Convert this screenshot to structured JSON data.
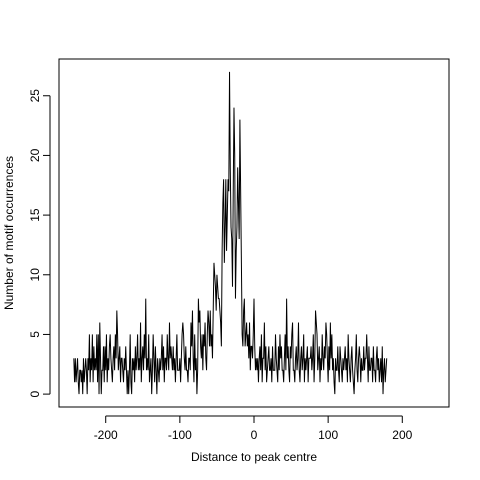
{
  "chart_data": {
    "type": "line",
    "title": "",
    "xlabel": "Distance to peak centre",
    "ylabel": "Number of motif occurrences",
    "xlim": [
      -250,
      250
    ],
    "ylim": [
      0,
      28
    ],
    "x_ticks": [
      -200,
      -100,
      0,
      100,
      200
    ],
    "x_tick_labels": [
      "-200",
      "-100",
      "0",
      "100",
      "200"
    ],
    "y_ticks": [
      0,
      5,
      10,
      15,
      20,
      25
    ],
    "y_tick_labels": [
      "0",
      "5",
      "10",
      "15",
      "20",
      "25"
    ],
    "grid": false,
    "legend": "none",
    "line_color": "#000000",
    "x_start": -243,
    "x_step": 1,
    "series": [
      {
        "values": [
          3,
          1,
          3,
          1,
          2,
          3,
          1,
          0,
          2,
          2,
          1,
          2,
          0,
          3,
          1,
          2,
          3,
          2,
          0,
          3,
          2,
          5,
          1,
          3,
          2,
          5,
          1,
          4,
          2,
          3,
          2,
          5,
          1,
          5,
          0,
          6,
          3,
          0,
          2,
          2,
          4,
          1,
          4,
          2,
          5,
          1,
          3,
          2,
          4,
          5,
          3,
          2,
          1,
          3,
          4,
          2,
          5,
          3,
          7,
          5,
          2,
          3,
          4,
          1,
          3,
          3,
          2,
          1,
          3,
          2,
          4,
          2,
          0,
          2,
          0,
          2,
          5,
          1,
          0,
          3,
          2,
          3,
          1,
          4,
          2,
          3,
          5,
          2,
          3,
          2,
          6,
          1,
          3,
          4,
          2,
          5,
          3,
          8,
          2,
          3,
          2,
          5,
          1,
          2,
          3,
          0,
          2,
          5,
          3,
          1,
          4,
          2,
          0,
          3,
          2,
          1,
          3,
          2,
          3,
          5,
          2,
          4,
          1,
          3,
          3,
          2,
          5,
          3,
          2,
          6,
          3,
          4,
          3,
          2,
          4,
          2,
          3,
          1,
          3,
          5,
          2,
          2,
          2,
          3,
          1,
          3,
          5,
          6,
          5,
          3,
          2,
          4,
          2,
          2,
          1,
          3,
          3,
          2,
          6,
          4,
          7,
          3,
          1,
          5,
          2,
          3,
          0,
          2,
          8,
          6,
          7,
          4,
          3,
          5,
          2,
          5,
          4,
          6,
          3,
          2,
          5,
          7,
          6,
          4,
          7,
          4,
          5,
          3,
          7,
          11,
          10,
          9,
          7,
          10,
          9,
          8,
          8,
          7,
          6,
          4,
          12,
          16,
          18,
          11,
          14,
          18,
          12,
          15,
          18,
          17,
          27,
          19,
          14,
          13,
          9,
          17,
          24,
          20,
          8,
          12,
          14,
          19,
          16,
          13,
          23,
          17,
          11,
          5,
          4,
          7,
          8,
          4,
          5,
          6,
          4,
          5,
          3,
          6,
          2,
          4,
          4,
          3,
          5,
          8,
          4,
          2,
          3,
          2,
          3,
          1,
          3,
          4,
          2,
          5,
          1,
          3,
          3,
          6,
          2,
          4,
          1,
          2,
          3,
          4,
          2,
          2,
          3,
          1,
          4,
          2,
          2,
          2,
          5,
          3,
          2,
          1,
          4,
          2,
          5,
          3,
          4,
          2,
          2,
          1,
          3,
          5,
          2,
          8,
          3,
          4,
          2,
          1,
          4,
          3,
          5,
          6,
          2,
          2,
          1,
          3,
          4,
          2,
          3,
          6,
          2,
          1,
          3,
          4,
          2,
          3,
          5,
          1,
          3,
          2,
          3,
          4,
          1,
          3,
          3,
          3,
          4,
          2,
          3,
          5,
          1,
          3,
          7,
          6,
          5,
          2,
          3,
          4,
          1,
          3,
          2,
          5,
          3,
          2,
          4,
          3,
          6,
          5,
          3,
          1,
          4,
          2,
          6,
          3,
          5,
          2,
          3,
          1,
          0,
          3,
          2,
          2,
          4,
          2,
          1,
          4,
          3,
          2,
          1,
          3,
          2,
          3,
          4,
          2,
          3,
          1,
          5,
          3,
          2,
          1,
          3,
          4,
          2,
          1,
          0,
          2,
          3,
          5,
          2,
          1,
          3,
          4,
          3,
          1,
          3,
          2,
          2,
          4,
          2,
          3,
          3,
          5,
          3,
          1,
          4,
          2,
          2,
          3,
          3,
          1,
          4,
          2,
          2,
          1,
          3,
          4,
          2,
          3,
          1,
          2,
          3,
          1,
          4,
          0,
          2,
          3,
          1,
          2,
          3
        ]
      }
    ]
  }
}
